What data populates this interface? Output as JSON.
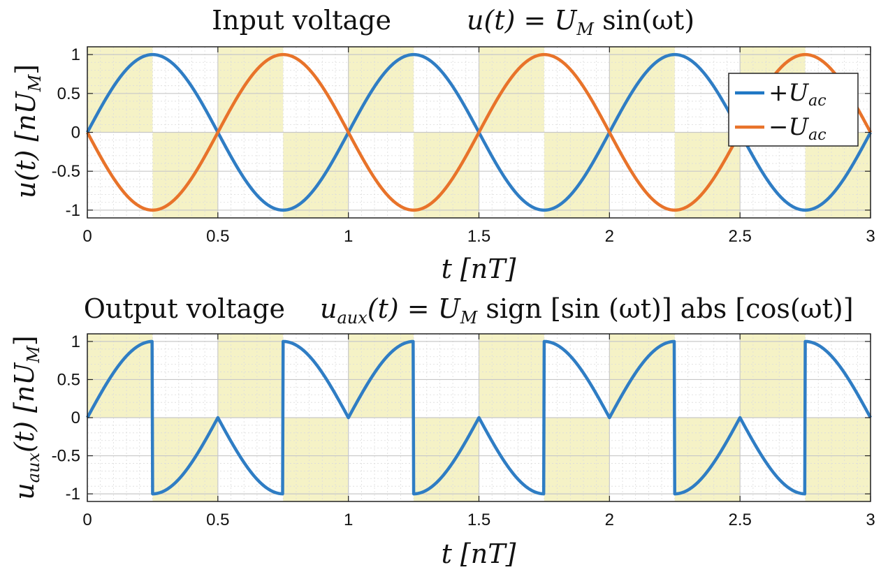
{
  "figure": {
    "panels": [
      {
        "title_left": "Input voltage",
        "title_formula": "u(t) = U",
        "title_formula_sub": "M",
        "title_formula_tail": " sin(ωt)",
        "ylabel_main": "u(t) [nU",
        "ylabel_sub": "M",
        "ylabel_close": "]",
        "xlabel": "t [nT]"
      },
      {
        "title_left": "Output voltage",
        "title_formula_head": "u",
        "title_formula_head_sub": "aux",
        "title_formula": "(t) = U",
        "title_formula_sub": "M",
        "title_formula_tail": " sign [sin (ωt)] abs [cos(ωt)]",
        "ylabel_main": "u",
        "ylabel_main_sub": "aux",
        "ylabel_rest": "(t) [nU",
        "ylabel_sub": "M",
        "ylabel_close": "]",
        "xlabel": "t [nT]"
      }
    ],
    "legend": [
      {
        "label_sign": "+",
        "label_main": "U",
        "label_sub": "ac",
        "color": "#1f77c4"
      },
      {
        "label_sign": "−",
        "label_main": "U",
        "label_sub": "ac",
        "color": "#e8732a"
      }
    ],
    "xticks": [
      "0",
      "0.5",
      "1",
      "1.5",
      "2",
      "2.5",
      "3"
    ],
    "yticks": [
      "1",
      "0.5",
      "0",
      "-0.5",
      "-1"
    ],
    "colors": {
      "blue": "#2f7dc4",
      "orange": "#e8732a",
      "shade": "#f5f2c6",
      "grid": "#d4d4d4"
    }
  },
  "chart_data": [
    {
      "type": "line",
      "title": "Input voltage u(t) = U_M sin(ωt)",
      "xlabel": "t [nT]",
      "ylabel": "u(t) [nU_M]",
      "xlim": [
        0,
        3
      ],
      "ylim": [
        -1.1,
        1.1
      ],
      "grid": true,
      "legend_position": "top-right",
      "shaded_quadrants": true,
      "series": [
        {
          "name": "+U_ac",
          "function": "sin(2πt)",
          "color": "#2f7dc4",
          "x": [
            0,
            0.25,
            0.5,
            0.75,
            1,
            1.25,
            1.5,
            1.75,
            2,
            2.25,
            2.5,
            2.75,
            3
          ],
          "y": [
            0,
            1,
            0,
            -1,
            0,
            1,
            0,
            -1,
            0,
            1,
            0,
            -1,
            0
          ]
        },
        {
          "name": "−U_ac",
          "function": "-sin(2πt)",
          "color": "#e8732a",
          "x": [
            0,
            0.25,
            0.5,
            0.75,
            1,
            1.25,
            1.5,
            1.75,
            2,
            2.25,
            2.5,
            2.75,
            3
          ],
          "y": [
            0,
            -1,
            0,
            1,
            0,
            -1,
            0,
            1,
            0,
            -1,
            0,
            1,
            0
          ]
        }
      ]
    },
    {
      "type": "line",
      "title": "Output voltage u_aux(t) = U_M sign[sin(ωt)] abs[cos(ωt)]",
      "xlabel": "t [nT]",
      "ylabel": "u_aux(t) [nU_M]",
      "xlim": [
        0,
        3
      ],
      "ylim": [
        -1.1,
        1.1
      ],
      "grid": true,
      "shaded_quadrants": true,
      "series": [
        {
          "function": "sin(2πt) for t mod 0.5 in [0,0.25); else sign(sin(2π(t-0.25)))·|cos(2π(t-0.25))| piecewise",
          "color": "#2f7dc4",
          "x": [
            0,
            0.25,
            0.25,
            0.5,
            0.75,
            0.75,
            1,
            1.25,
            1.25,
            1.5,
            1.75,
            1.75,
            2,
            2.25,
            2.25,
            2.5,
            2.75,
            2.75,
            3
          ],
          "y": [
            0,
            1,
            -1,
            0,
            -1,
            1,
            0,
            1,
            -1,
            0,
            -1,
            1,
            0,
            1,
            -1,
            0,
            -1,
            1,
            0
          ]
        }
      ]
    }
  ]
}
